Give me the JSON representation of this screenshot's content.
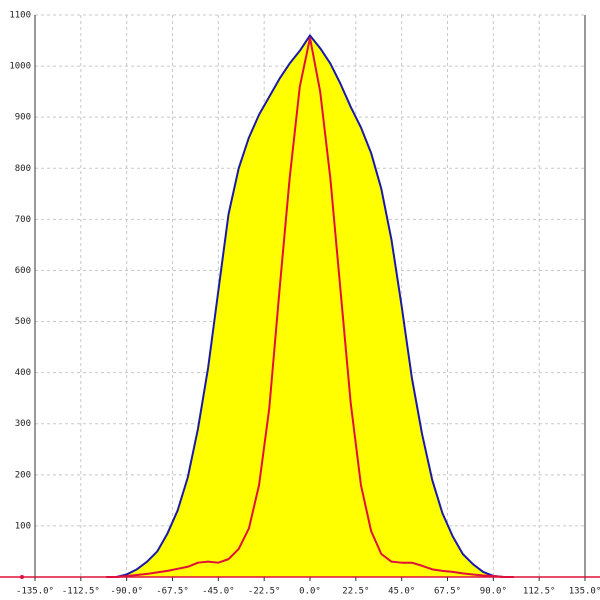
{
  "chart_data": {
    "type": "area",
    "x": [
      -100,
      -95,
      -90,
      -85,
      -80,
      -75,
      -70,
      -65,
      -60,
      -55,
      -50,
      -45,
      -40,
      -35,
      -30,
      -25,
      -20,
      -15,
      -10,
      -5,
      0,
      5,
      10,
      15,
      20,
      25,
      30,
      35,
      40,
      45,
      50,
      55,
      60,
      65,
      70,
      75,
      80,
      85,
      90,
      95,
      100
    ],
    "series": [
      {
        "color": "#1a1aa8",
        "fill": "#ffff00",
        "values": [
          0,
          0,
          5,
          15,
          30,
          50,
          85,
          130,
          195,
          290,
          410,
          560,
          710,
          800,
          860,
          905,
          940,
          975,
          1005,
          1030,
          1060,
          1035,
          1005,
          965,
          920,
          880,
          830,
          760,
          660,
          530,
          390,
          280,
          190,
          125,
          80,
          45,
          25,
          10,
          2,
          0,
          0
        ]
      },
      {
        "color": "#e0103a",
        "values": [
          0,
          0,
          2,
          4,
          6,
          9,
          12,
          16,
          20,
          28,
          30,
          28,
          35,
          55,
          95,
          180,
          330,
          560,
          780,
          960,
          1055,
          950,
          780,
          560,
          340,
          180,
          90,
          45,
          30,
          28,
          28,
          22,
          15,
          12,
          10,
          7,
          5,
          3,
          2,
          0,
          0
        ]
      }
    ],
    "xlim": [
      -135,
      135
    ],
    "xticks": [
      {
        "value": -135,
        "label": "-135.0°"
      },
      {
        "value": -112.5,
        "label": "-112.5°"
      },
      {
        "value": -90,
        "label": "-90.0°"
      },
      {
        "value": -67.5,
        "label": "-67.5°"
      },
      {
        "value": -45,
        "label": "-45.0°"
      },
      {
        "value": -22.5,
        "label": "-22.5°"
      },
      {
        "value": 0,
        "label": "0.0°"
      },
      {
        "value": 22.5,
        "label": "22.5°"
      },
      {
        "value": 45,
        "label": "45.0°"
      },
      {
        "value": 67.5,
        "label": "67.5°"
      },
      {
        "value": 90,
        "label": "90.0°"
      },
      {
        "value": 112.5,
        "label": "112.5°"
      },
      {
        "value": 135,
        "label": "135.0°"
      }
    ],
    "ylim": [
      0,
      1100
    ],
    "yticks": [
      100,
      200,
      300,
      400,
      500,
      600,
      700,
      800,
      900,
      1000,
      1100
    ],
    "grid": true
  }
}
